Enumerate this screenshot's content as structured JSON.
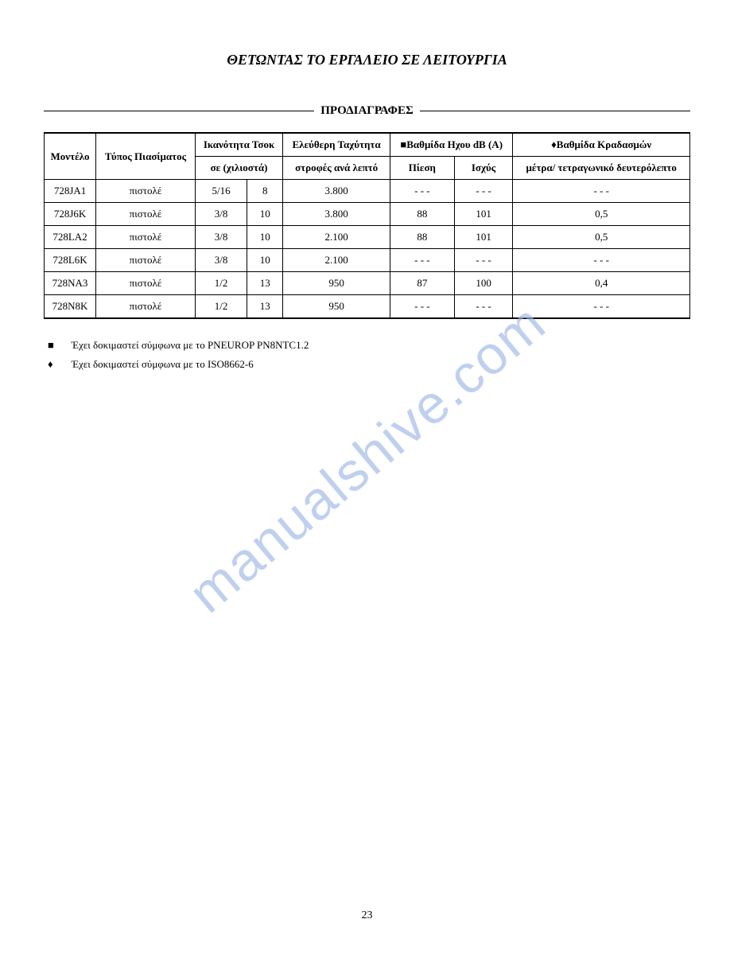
{
  "page": {
    "title": "ΘΕΤΩΝΤΑΣ ΤΟ ΕΡΓΑΛΕΙΟ ΣΕ ΛΕΙΤΟΥΡΓΙΑ",
    "section_title": "ΠΡΟΔΙΑΓΡΑΦΕΣ",
    "page_number": "23"
  },
  "table": {
    "headers": {
      "model": "Μοντέλο",
      "grip_type": "Τύπος Πιασίματος",
      "chuck_capacity": "Ικανότητα Τσοκ",
      "free_speed": "Ελεύθερη Ταχύτητα",
      "sound_level": "■Βαθμίδα Ηχου dB (A)",
      "vibration": "♦Βαθμίδα Κραδασμών",
      "sub_mm": "σε (χιλιοστά)",
      "sub_rpm": "στροφές ανά λεπτό",
      "sub_pressure": "Πίεση",
      "sub_power": "Ισχύς",
      "sub_vib": "μέτρα/ τετραγωνικό δευτερόλεπτο"
    },
    "rows": [
      {
        "model": "728JA1",
        "grip": "πιστολέ",
        "chuck_in": "5/16",
        "chuck_mm": "8",
        "rpm": "3.800",
        "pressure": "- - -",
        "power": "- - -",
        "vib": "- - -"
      },
      {
        "model": "728J6K",
        "grip": "πιστολέ",
        "chuck_in": "3/8",
        "chuck_mm": "10",
        "rpm": "3.800",
        "pressure": "88",
        "power": "101",
        "vib": "0,5"
      },
      {
        "model": "728LA2",
        "grip": "πιστολέ",
        "chuck_in": "3/8",
        "chuck_mm": "10",
        "rpm": "2.100",
        "pressure": "88",
        "power": "101",
        "vib": "0,5"
      },
      {
        "model": "728L6K",
        "grip": "πιστολέ",
        "chuck_in": "3/8",
        "chuck_mm": "10",
        "rpm": "2.100",
        "pressure": "- - -",
        "power": "- - -",
        "vib": "- - -"
      },
      {
        "model": "728NA3",
        "grip": "πιστολέ",
        "chuck_in": "1/2",
        "chuck_mm": "13",
        "rpm": "950",
        "pressure": "87",
        "power": "100",
        "vib": "0,4"
      },
      {
        "model": "728N8K",
        "grip": "πιστολέ",
        "chuck_in": "1/2",
        "chuck_mm": "13",
        "rpm": "950",
        "pressure": "- - -",
        "power": "- - -",
        "vib": "- - -"
      }
    ]
  },
  "footnotes": {
    "square": "Έχει δοκιμαστεί σύμφωνα με το PNEUROP PN8NTC1.2",
    "diamond": "Έχει δοκιμαστεί σύμφωνα με το ISO8662-6"
  },
  "watermark": "manualshive.com"
}
